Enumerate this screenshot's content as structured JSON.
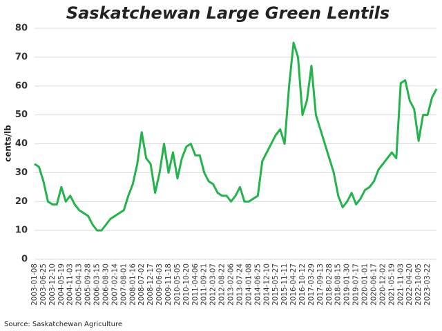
{
  "chart_data": {
    "type": "line",
    "title": "Saskatchewan Large Green Lentils",
    "y_label": "cents/lb",
    "source": "Source: Saskatchewan Agriculture",
    "categories": [
      "2003-01-08",
      null,
      "2003-06-25",
      null,
      "2003-12-10",
      null,
      "2004-05-19",
      null,
      "2004-11-03",
      null,
      "2005-04-13",
      null,
      "2005-09-28",
      null,
      "2006-03-15",
      null,
      "2006-08-30",
      null,
      "2007-02-14",
      null,
      "2007-08-01",
      null,
      "2008-01-16",
      null,
      "2008-07-02",
      null,
      "2008-12-17",
      null,
      "2009-06-03",
      null,
      "2009-11-18",
      null,
      "2010-05-05",
      null,
      "2010-10-20",
      null,
      "2011-04-06",
      null,
      "2011-09-21",
      null,
      "2012-03-07",
      null,
      "2012-08-22",
      null,
      "2013-02-06",
      null,
      "2013-07-24",
      null,
      "2014-01-08",
      null,
      "2014-06-25",
      null,
      "2014-12-10",
      null,
      "2015-05-27",
      null,
      "2015-11-11",
      null,
      "2016-04-27",
      null,
      "2016-10-12",
      null,
      "2017-03-29",
      null,
      "2017-09-13",
      null,
      "2018-02-28",
      null,
      "2018-08-15",
      null,
      "2019-01-30",
      null,
      "2019-07-17",
      null,
      "2020-01-01",
      null,
      "2020-06-17",
      null,
      "2020-12-02",
      null,
      "2021-05-19",
      null,
      "2021-11-03",
      null,
      "2022-04-20",
      null,
      "2022-10-05",
      null,
      "2023-03-22",
      null,
      null
    ],
    "series": [
      {
        "name": "Large Green Lentils",
        "color": "#22b34a",
        "values": [
          33,
          32,
          27,
          20,
          19,
          19,
          25,
          20,
          22,
          19,
          17,
          16,
          15,
          12,
          10,
          10,
          12,
          14,
          15,
          16,
          17,
          22,
          26,
          33,
          44,
          35,
          33,
          23,
          30,
          40,
          30,
          37,
          28,
          35,
          39,
          40,
          36,
          36,
          30,
          27,
          26,
          23,
          22,
          22,
          20,
          22,
          25,
          20,
          20,
          21,
          22,
          34,
          37,
          40,
          43,
          45,
          40,
          60,
          75,
          70,
          50,
          55,
          67,
          50,
          45,
          40,
          35,
          30,
          22,
          18,
          20,
          23,
          19,
          21,
          24,
          25,
          27,
          31,
          33,
          35,
          37,
          35,
          61,
          62,
          55,
          52,
          41,
          50,
          50,
          56,
          59
        ]
      }
    ],
    "ylim": [
      0,
      80
    ],
    "yticks": [
      0,
      10,
      20,
      30,
      40,
      50,
      60,
      70,
      80
    ],
    "grid": true
  }
}
